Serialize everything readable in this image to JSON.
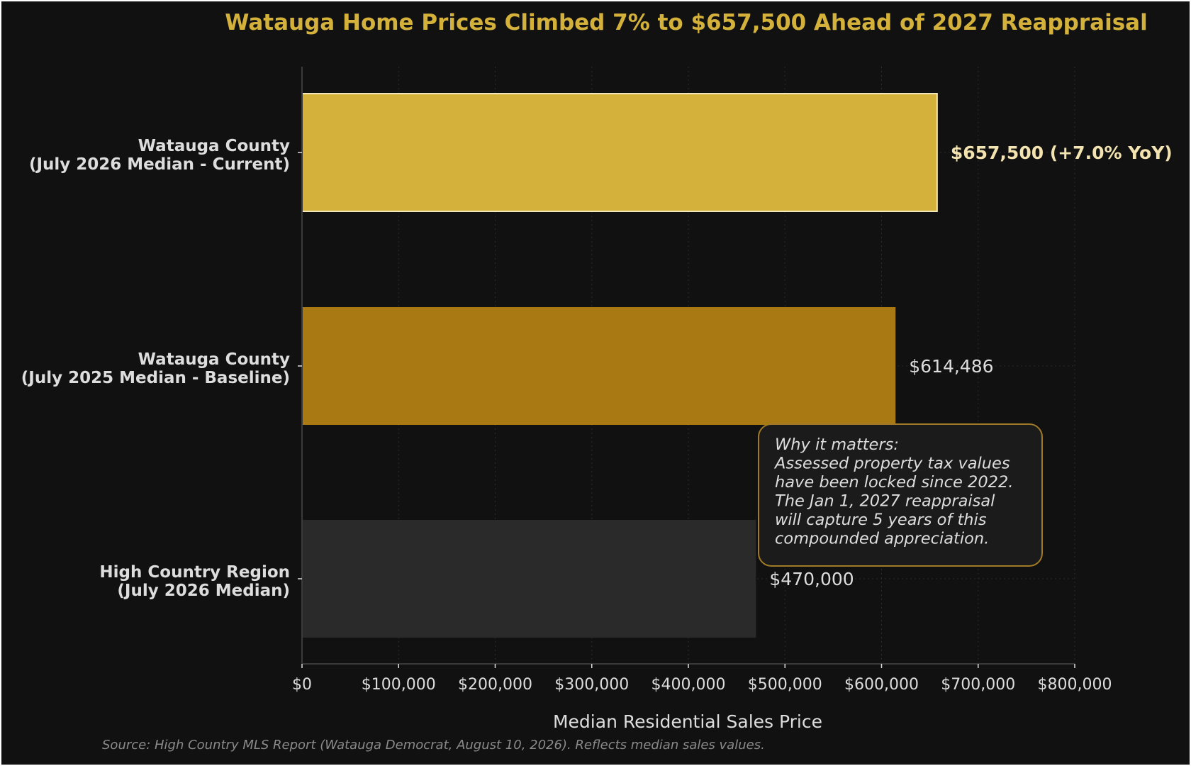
{
  "chart_data": {
    "type": "bar",
    "orientation": "horizontal",
    "title": "Watauga Home Prices Climbed 7% to $657,500 Ahead of 2027 Reappraisal",
    "xlabel": "Median Residential Sales Price",
    "ylabel": "",
    "xlim": [
      0,
      800000
    ],
    "x_ticks": [
      0,
      100000,
      200000,
      300000,
      400000,
      500000,
      600000,
      700000,
      800000
    ],
    "x_tick_labels": [
      "$0",
      "$100,000",
      "$200,000",
      "$300,000",
      "$400,000",
      "$500,000",
      "$600,000",
      "$700,000",
      "$800,000"
    ],
    "grid": "vertical dotted",
    "categories": [
      {
        "lines": [
          "Watauga County",
          "(July 2026 Median - Current)"
        ]
      },
      {
        "lines": [
          "Watauga County",
          "(July 2025 Median - Baseline)"
        ]
      },
      {
        "lines": [
          "High Country Region",
          "(July 2026 Median)"
        ]
      }
    ],
    "values": [
      657500,
      614486,
      470000
    ],
    "value_labels": [
      "$657,500 (+7.0% YoY)",
      "$614,486",
      "$470,000"
    ],
    "bar_colors": [
      "#d4b13a",
      "#a97914",
      "#2a2a2a"
    ],
    "highlight_index": 0,
    "annotation": {
      "lines": [
        "Why it matters:",
        "Assessed property tax values",
        "have been locked since 2022.",
        "The Jan 1, 2027 reappraisal",
        "will capture 5 years of this",
        "compounded appreciation."
      ]
    },
    "source": "Source: High Country MLS Report (Watauga Democrat, August 10, 2026). Reflects median sales values."
  },
  "colors": {
    "background": "#111111",
    "title": "#d4b13a",
    "text": "#dddddd",
    "axis": "#3a3a3a",
    "grid": "#2b2b2b",
    "note_border": "#a07a26",
    "note_fill": "#1b1b1b",
    "highlight_outline": "#f3e6b8"
  }
}
